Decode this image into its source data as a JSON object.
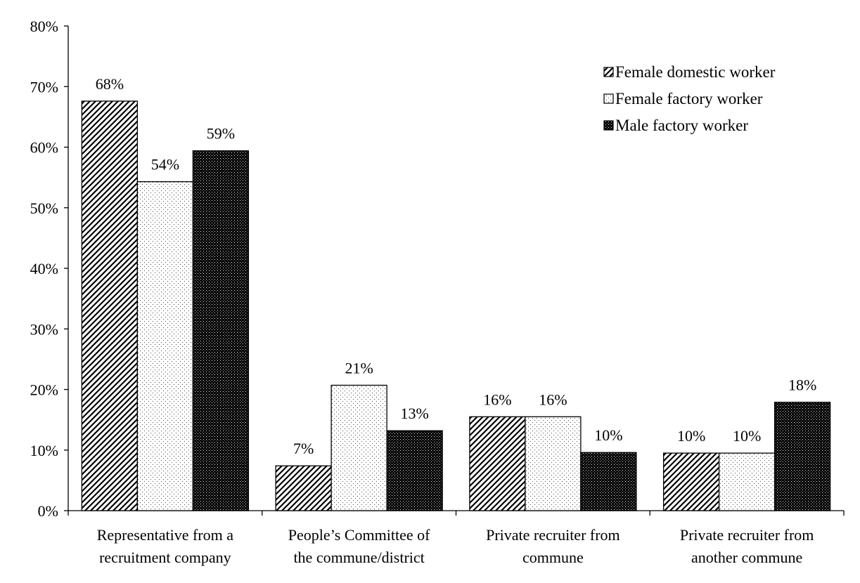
{
  "chart_data": {
    "type": "bar",
    "title": "",
    "xlabel": "",
    "ylabel": "",
    "ylim": [
      0,
      0.8
    ],
    "yticks": [
      "0%",
      "10%",
      "20%",
      "30%",
      "40%",
      "50%",
      "60%",
      "70%",
      "80%"
    ],
    "grid": false,
    "legend_position": "top-right",
    "categories": [
      [
        "Representative from a",
        "recruitment company"
      ],
      [
        "People’s Committee of",
        "the commune/district"
      ],
      [
        "Private recruiter from",
        "commune"
      ],
      [
        "Private recruiter from",
        "another commune"
      ]
    ],
    "series": [
      {
        "name": "Female domestic worker",
        "pattern": "diagonal-hatch",
        "values": [
          0.676,
          0.074,
          0.155,
          0.095
        ],
        "labels": [
          "68%",
          "7%",
          "16%",
          "10%"
        ]
      },
      {
        "name": "Female factory worker",
        "pattern": "light-dots",
        "values": [
          0.543,
          0.207,
          0.155,
          0.095
        ],
        "labels": [
          "54%",
          "21%",
          "16%",
          "10%"
        ]
      },
      {
        "name": "Male factory worker",
        "pattern": "dense-dark-dots",
        "values": [
          0.594,
          0.132,
          0.096,
          0.179
        ],
        "labels": [
          "59%",
          "13%",
          "10%",
          "18%"
        ]
      }
    ],
    "colors": {
      "line": "#000000",
      "background": "#ffffff"
    }
  }
}
